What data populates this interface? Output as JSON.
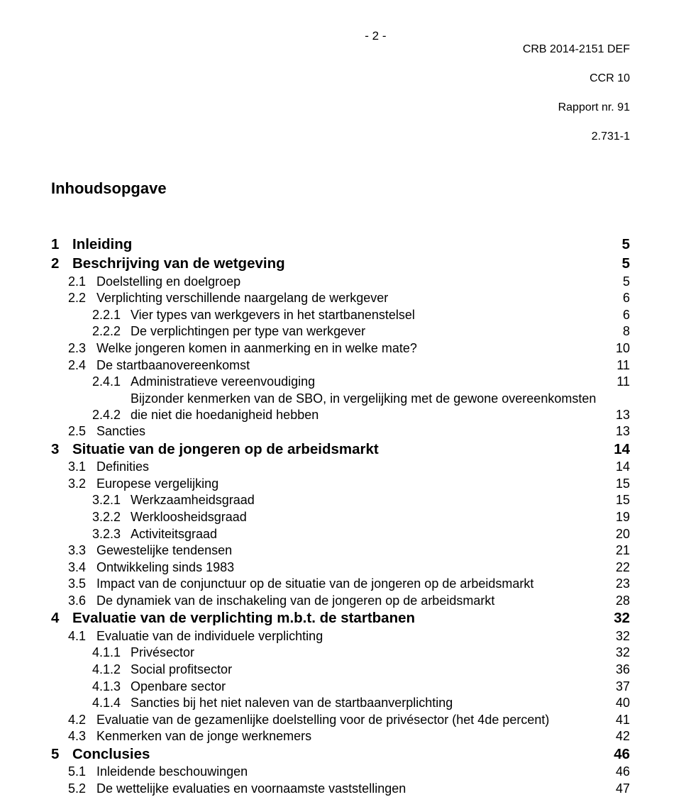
{
  "header": {
    "page_number": "- 2 -",
    "right_lines": [
      "CRB 2014-2151 DEF",
      "CCR 10",
      "Rapport nr. 91",
      "2.731-1"
    ]
  },
  "toc_title": "Inhoudsopgave",
  "toc": [
    {
      "level": 1,
      "bold": true,
      "num": "1",
      "title": "Inleiding",
      "page": "5"
    },
    {
      "level": 1,
      "bold": true,
      "num": "2",
      "title": "Beschrijving van de wetgeving",
      "page": "5"
    },
    {
      "level": 2,
      "bold": false,
      "num": "2.1",
      "title": "Doelstelling en doelgroep",
      "page": "5"
    },
    {
      "level": 2,
      "bold": false,
      "num": "2.2",
      "title": "Verplichting verschillende naargelang de werkgever",
      "page": "6"
    },
    {
      "level": 3,
      "bold": false,
      "num": "2.2.1",
      "title": "Vier types van werkgevers in het startbanenstelsel",
      "page": "6"
    },
    {
      "level": 3,
      "bold": false,
      "num": "2.2.2",
      "title": "De verplichtingen per type van werkgever",
      "page": "8"
    },
    {
      "level": 2,
      "bold": false,
      "num": "2.3",
      "title": "Welke jongeren komen in aanmerking en in welke mate?",
      "page": "10"
    },
    {
      "level": 2,
      "bold": false,
      "num": "2.4",
      "title": "De startbaanovereenkomst",
      "page": "11"
    },
    {
      "level": 3,
      "bold": false,
      "num": "2.4.1",
      "title": "Administratieve vereenvoudiging",
      "page": "11"
    },
    {
      "level": 3,
      "bold": false,
      "num": "2.4.2",
      "title": "Bijzonder kenmerken van de SBO, in vergelijking met de gewone overeenkomsten die niet die hoedanigheid hebben",
      "page": "13",
      "multiline": true
    },
    {
      "level": 2,
      "bold": false,
      "num": "2.5",
      "title": "Sancties",
      "page": "13"
    },
    {
      "level": 1,
      "bold": true,
      "num": "3",
      "title": "Situatie van de jongeren op de arbeidsmarkt",
      "page": "14"
    },
    {
      "level": 2,
      "bold": false,
      "num": "3.1",
      "title": "Definities",
      "page": "14"
    },
    {
      "level": 2,
      "bold": false,
      "num": "3.2",
      "title": "Europese vergelijking",
      "page": "15"
    },
    {
      "level": 3,
      "bold": false,
      "num": "3.2.1",
      "title": "Werkzaamheidsgraad",
      "page": "15"
    },
    {
      "level": 3,
      "bold": false,
      "num": "3.2.2",
      "title": "Werkloosheidsgraad",
      "page": "19"
    },
    {
      "level": 3,
      "bold": false,
      "num": "3.2.3",
      "title": "Activiteitsgraad",
      "page": "20"
    },
    {
      "level": 2,
      "bold": false,
      "num": "3.3",
      "title": "Gewestelijke tendensen",
      "page": "21"
    },
    {
      "level": 2,
      "bold": false,
      "num": "3.4",
      "title": "Ontwikkeling sinds 1983",
      "page": "22"
    },
    {
      "level": 2,
      "bold": false,
      "num": "3.5",
      "title": "Impact van de conjunctuur op de situatie van de jongeren op de arbeidsmarkt",
      "page": "23"
    },
    {
      "level": 2,
      "bold": false,
      "num": "3.6",
      "title": "De dynamiek van de inschakeling van de jongeren op de arbeidsmarkt",
      "page": "28"
    },
    {
      "level": 1,
      "bold": true,
      "num": "4",
      "title": "Evaluatie van de verplichting m.b.t. de startbanen",
      "page": "32"
    },
    {
      "level": 2,
      "bold": false,
      "num": "4.1",
      "title": "Evaluatie van de individuele verplichting",
      "page": "32"
    },
    {
      "level": 3,
      "bold": false,
      "num": "4.1.1",
      "title": "Privésector",
      "page": "32"
    },
    {
      "level": 3,
      "bold": false,
      "num": "4.1.2",
      "title": "Social profitsector",
      "page": "36"
    },
    {
      "level": 3,
      "bold": false,
      "num": "4.1.3",
      "title": "Openbare sector",
      "page": "37"
    },
    {
      "level": 3,
      "bold": false,
      "num": "4.1.4",
      "title": "Sancties bij het niet naleven van de startbaanverplichting",
      "page": "40"
    },
    {
      "level": 2,
      "bold": false,
      "num": "4.2",
      "title": "Evaluatie van de gezamenlijke doelstelling voor de privésector (het 4de percent)",
      "page": "41"
    },
    {
      "level": 2,
      "bold": false,
      "num": "4.3",
      "title": "Kenmerken van de jonge werknemers",
      "page": "42"
    },
    {
      "level": 1,
      "bold": true,
      "num": "5",
      "title": "Conclusies",
      "page": "46"
    },
    {
      "level": 2,
      "bold": false,
      "num": "5.1",
      "title": "Inleidende beschouwingen",
      "page": "46"
    },
    {
      "level": 2,
      "bold": false,
      "num": "5.2",
      "title": "De wettelijke evaluaties en voornaamste vaststellingen",
      "page": "47"
    }
  ]
}
